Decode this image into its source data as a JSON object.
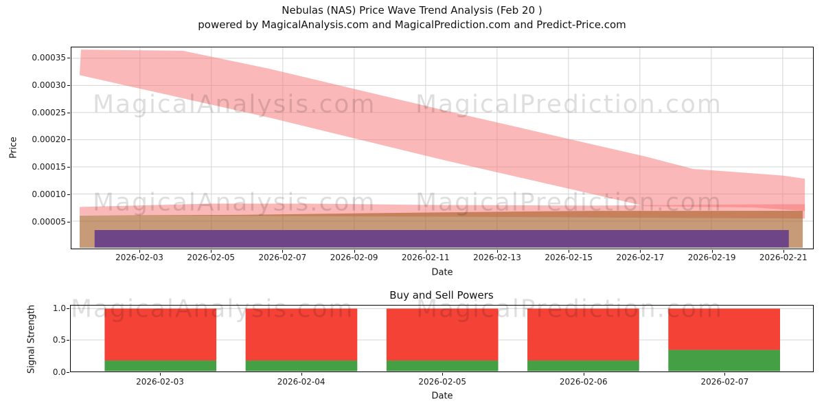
{
  "figure": {
    "title_line1": "Nebulas (NAS) Price Wave Trend Analysis (Feb 20 )",
    "title_line2": "powered by MagicalAnalysis.com and MagicalPrediction.com and Predict-Price.com",
    "background_color": "#ffffff"
  },
  "watermarks": {
    "analysis": "MagicalAnalysis.com",
    "prediction": "MagicalPrediction.com",
    "color": "rgba(0,0,0,0.13)"
  },
  "top_chart": {
    "xlabel": "Date",
    "ylabel": "Price",
    "xtick_labels": [
      "2026-02-03",
      "2026-02-05",
      "2026-02-07",
      "2026-02-09",
      "2026-02-11",
      "2026-02-13",
      "2026-02-15",
      "2026-02-17",
      "2026-02-19",
      "2026-02-21"
    ],
    "ytick_labels": [
      "0.00035",
      "0.00030",
      "0.00025",
      "0.00020",
      "0.00015",
      "0.00010",
      "0.00005"
    ]
  },
  "bottom_chart": {
    "title": "Buy and Sell Powers",
    "xlabel": "Date",
    "ylabel": "Signal Strength",
    "xtick_labels": [
      "2026-02-03",
      "2026-02-04",
      "2026-02-05",
      "2026-02-06",
      "2026-02-07"
    ],
    "ytick_labels": [
      "1.0",
      "0.5",
      "0.0"
    ]
  },
  "chart_data": [
    {
      "type": "area",
      "title": "Nebulas (NAS) Price Wave Trend Analysis (Feb 20 )",
      "xlabel": "Date",
      "ylabel": "Price",
      "x_unit": "day of February 2026",
      "xlim": [
        1.08,
        21.84
      ],
      "ylim": [
        0,
        0.00037
      ],
      "grid": true,
      "grid_color": "#d4d4d4",
      "xtick_days": [
        3,
        5,
        7,
        9,
        11,
        13,
        15,
        17,
        19,
        21
      ],
      "ytick_values": [
        0.00035,
        0.0003,
        0.00025,
        0.0002,
        0.00015,
        0.0001,
        5e-05
      ],
      "legend": "none",
      "bands": [
        {
          "name": "upper-trend-band",
          "color": "#f87171",
          "opacity": 0.5,
          "upper": [
            [
              1.35,
              0.000366
            ],
            [
              4.2,
              0.000364
            ],
            [
              6.6,
              0.000331
            ],
            [
              11.6,
              0.000253
            ],
            [
              17.15,
              0.000169
            ],
            [
              18.5,
              0.000146
            ],
            [
              21.0,
              0.000134
            ],
            [
              21.62,
              0.000128
            ]
          ],
          "lower": [
            [
              1.31,
              0.000319
            ],
            [
              6.6,
              0.000241
            ],
            [
              11.6,
              0.000161
            ],
            [
              17.15,
              7.75e-05
            ],
            [
              20.2,
              7.52e-05
            ],
            [
              21.62,
              6.85e-05
            ]
          ]
        },
        {
          "name": "lower-trend-band",
          "color": "#f87171",
          "opacity": 0.5,
          "upper": [
            [
              1.31,
              7.6e-05
            ],
            [
              5.0,
              8.22e-05
            ],
            [
              7.7,
              8.23e-05
            ],
            [
              10.9,
              7.98e-05
            ],
            [
              15.6,
              7.85e-05
            ],
            [
              20.2,
              8.08e-05
            ],
            [
              21.62,
              8.11e-05
            ]
          ],
          "lower": [
            [
              1.31,
              6.08e-05
            ],
            [
              10.6,
              5.84e-05
            ],
            [
              21.62,
              5.47e-05
            ]
          ]
        },
        {
          "name": "support-band",
          "color": "#a55e23",
          "opacity": 0.62,
          "upper": [
            [
              1.31,
              6.05e-05
            ],
            [
              5.8,
              6.15e-05
            ],
            [
              9.0,
              6.42e-05
            ],
            [
              13.5,
              6.75e-05
            ],
            [
              15.6,
              6.88e-05
            ],
            [
              21.56,
              6.9e-05
            ]
          ],
          "lower": [
            [
              1.31,
              8e-07
            ],
            [
              21.56,
              8e-07
            ]
          ]
        },
        {
          "name": "base-band",
          "color": "#6b4387",
          "opacity": 0.97,
          "upper": [
            [
              1.73,
              3.36e-05
            ],
            [
              21.17,
              3.36e-05
            ]
          ],
          "lower": [
            [
              1.73,
              1.2e-06
            ],
            [
              21.17,
              1.2e-06
            ]
          ]
        }
      ]
    },
    {
      "type": "bar",
      "title": "Buy and Sell Powers",
      "xlabel": "Date",
      "ylabel": "Signal Strength",
      "ylim": [
        0,
        1.03
      ],
      "grid": true,
      "grid_color": "#d4d4d4",
      "ytick_values": [
        1.0,
        0.5
      ],
      "categories": [
        "2026-02-03",
        "2026-02-04",
        "2026-02-05",
        "2026-02-06",
        "2026-02-07"
      ],
      "stacked": true,
      "series": [
        {
          "name": "buy-power",
          "color": "#45a045",
          "values": [
            0.17,
            0.17,
            0.17,
            0.17,
            0.34
          ]
        },
        {
          "name": "sell-power",
          "color": "#f44336",
          "values": [
            0.83,
            0.83,
            0.83,
            0.83,
            0.66
          ]
        }
      ]
    }
  ]
}
